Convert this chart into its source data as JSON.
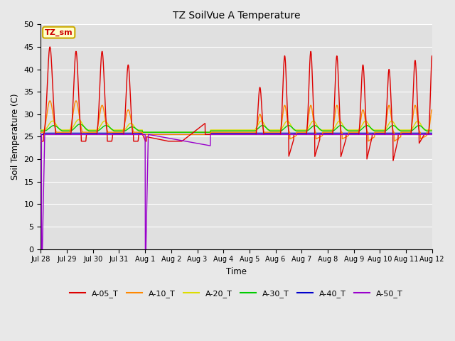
{
  "title": "TZ SoilVue A Temperature",
  "xlabel": "Time",
  "ylabel": "Soil Temperature (C)",
  "ylim": [
    0,
    50
  ],
  "yticks": [
    0,
    5,
    10,
    15,
    20,
    25,
    30,
    35,
    40,
    45,
    50
  ],
  "annotation_text": "TZ_sm",
  "annotation_color": "#cc0000",
  "annotation_bg": "#ffffcc",
  "annotation_border": "#ccaa00",
  "plot_bg_color": "#e0e0e0",
  "fig_bg_color": "#e8e8e8",
  "grid_color": "#ffffff",
  "series_colors": {
    "A-05_T": "#dd0000",
    "A-10_T": "#ff8800",
    "A-20_T": "#dddd00",
    "A-30_T": "#00cc00",
    "A-40_T": "#0000cc",
    "A-50_T": "#9900cc"
  },
  "legend_order": [
    "A-05_T",
    "A-10_T",
    "A-20_T",
    "A-30_T",
    "A-40_T",
    "A-50_T"
  ],
  "tick_labels": [
    "Jul 28",
    "Jul 29",
    "Jul 30",
    "Jul 31",
    "Aug 1",
    "Aug 2",
    "Aug 3",
    "Aug 4",
    "Aug 5",
    "Aug 6",
    "Aug 7",
    "Aug 8",
    "Aug 9",
    "Aug 10",
    "Aug 11",
    "Aug 12"
  ]
}
